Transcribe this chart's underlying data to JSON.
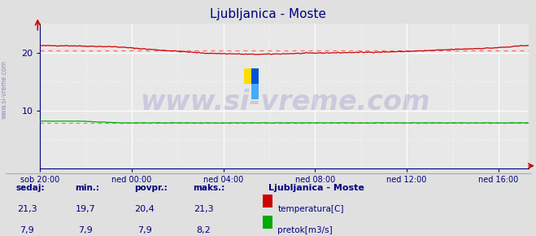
{
  "title": "Ljubljanica - Moste",
  "title_color": "#000080",
  "title_fontsize": 11,
  "bg_color": "#e0e0e0",
  "plot_bg_color": "#e8e8e8",
  "grid_color": "#ffffff",
  "grid_minor_color": "#ffffff",
  "x_tick_labels": [
    "sob 20:00",
    "ned 00:00",
    "ned 04:00",
    "ned 08:00",
    "ned 12:00",
    "ned 16:00"
  ],
  "x_tick_positions": [
    0,
    72,
    144,
    216,
    288,
    360
  ],
  "ylim": [
    0,
    25
  ],
  "xlim": [
    0,
    384
  ],
  "y_ticks": [
    10,
    20
  ],
  "temp_avg": 20.4,
  "temp_min": 19.7,
  "temp_max": 21.3,
  "flow_avg": 7.9,
  "flow_min": 7.9,
  "flow_max": 8.2,
  "flow_current": 7.9,
  "temp_color": "#cc0000",
  "temp_avg_color": "#ff6666",
  "flow_color": "#00aa00",
  "flow_avg_color": "#44cc44",
  "axis_color": "#000080",
  "tick_color": "#000080",
  "label_color": "#000080",
  "watermark_text": "www.si-vreme.com",
  "watermark_color": "#4444aa",
  "watermark_alpha": 0.18,
  "watermark_fontsize": 24,
  "legend_title": "Ljubljanica - Moste",
  "legend_items": [
    "temperatura[C]",
    "pretok[m3/s]"
  ],
  "legend_colors": [
    "#cc0000",
    "#00aa00"
  ],
  "footer_labels": [
    "sedaj:",
    "min.:",
    "povpr.:",
    "maks.:"
  ],
  "footer_temp": [
    "21,3",
    "19,7",
    "20,4",
    "21,3"
  ],
  "footer_flow": [
    "7,9",
    "7,9",
    "7,9",
    "8,2"
  ],
  "sidebar_text": "www.si-vreme.com",
  "sidebar_color": "#6666bb",
  "n_points": 385,
  "temp_shape": [
    21.2,
    21.2,
    21.0,
    20.5,
    19.9,
    19.7,
    19.9,
    20.0,
    20.1,
    20.3,
    20.6,
    20.8,
    21.0,
    21.3
  ],
  "temp_x_knots": [
    0,
    20,
    60,
    90,
    130,
    170,
    210,
    240,
    270,
    300,
    330,
    355,
    370,
    384
  ],
  "flow_bump_end": 65,
  "flow_base": 7.9,
  "flow_bump_val": 8.2
}
